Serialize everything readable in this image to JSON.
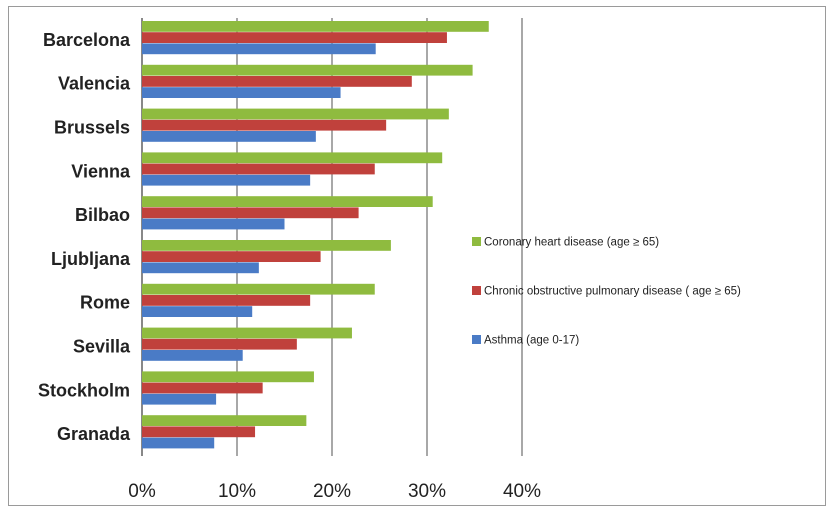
{
  "chart_data": {
    "type": "bar",
    "orientation": "horizontal",
    "categories": [
      "Barcelona",
      "Valencia",
      "Brussels",
      "Vienna",
      "Bilbao",
      "Ljubljana",
      "Rome",
      "Sevilla",
      "Stockholm",
      "Granada"
    ],
    "series": [
      {
        "name": "Coronary heart disease (age ≥ 65)",
        "color": "#8fbb3f",
        "values": [
          36.5,
          34.8,
          32.3,
          31.6,
          30.6,
          26.2,
          24.5,
          22.1,
          18.1,
          17.3
        ]
      },
      {
        "name": "Chronic obstructive pulmonary disease ( age ≥ 65)",
        "color": "#c0413c",
        "values": [
          32.1,
          28.4,
          25.7,
          24.5,
          22.8,
          18.8,
          17.7,
          16.3,
          12.7,
          11.9
        ]
      },
      {
        "name": "Asthma (age 0-17)",
        "color": "#4a7bc6",
        "values": [
          24.6,
          20.9,
          18.3,
          17.7,
          15.0,
          12.3,
          11.6,
          10.6,
          7.8,
          7.6
        ]
      }
    ],
    "xlim": [
      0,
      40
    ],
    "xticks": [
      0,
      10,
      20,
      30,
      40
    ],
    "xtick_labels": [
      "0%",
      "10%",
      "20%",
      "30%",
      "40%"
    ],
    "grid": "vertical",
    "legend_position": "right",
    "title": "",
    "xlabel": "",
    "ylabel": ""
  }
}
